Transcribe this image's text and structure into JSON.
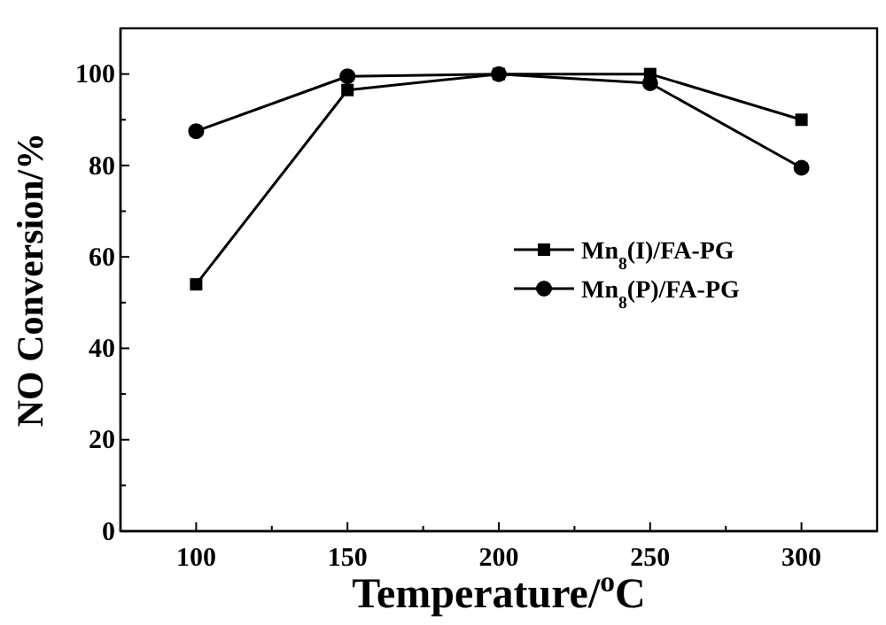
{
  "chart_data": {
    "type": "line",
    "xlabel": "Temperature/$^{o}$C",
    "ylabel": "NO Conversion/%",
    "x": [
      100,
      150,
      200,
      250,
      300
    ],
    "series": [
      {
        "name": "Mn$_{8}$(I)/FA-PG",
        "color": "#000000",
        "marker": "square",
        "values": [
          54,
          96.5,
          100,
          100,
          90
        ]
      },
      {
        "name": "Mn$_{8}$(P)/FA-PG",
        "color": "#000000",
        "marker": "circle",
        "values": [
          87.5,
          99.5,
          100,
          98,
          79.5
        ]
      }
    ],
    "xlim": [
      75,
      325
    ],
    "xticks": [
      100,
      {
        "value": 125,
        "label": null
      },
      150,
      {
        "value": 175,
        "label": null
      },
      200,
      {
        "value": 225,
        "label": null
      },
      250,
      {
        "value": 275,
        "label": null
      },
      300
    ],
    "ylim": [
      0,
      110
    ],
    "yticks": [
      0,
      {
        "value": 10,
        "label": null
      },
      20,
      {
        "value": 30,
        "label": null
      },
      40,
      {
        "value": 50,
        "label": null
      },
      60,
      {
        "value": 70,
        "label": null
      },
      80,
      {
        "value": 90,
        "label": null
      },
      100
    ],
    "grid": false,
    "legend": "right",
    "line_style": "solid"
  }
}
